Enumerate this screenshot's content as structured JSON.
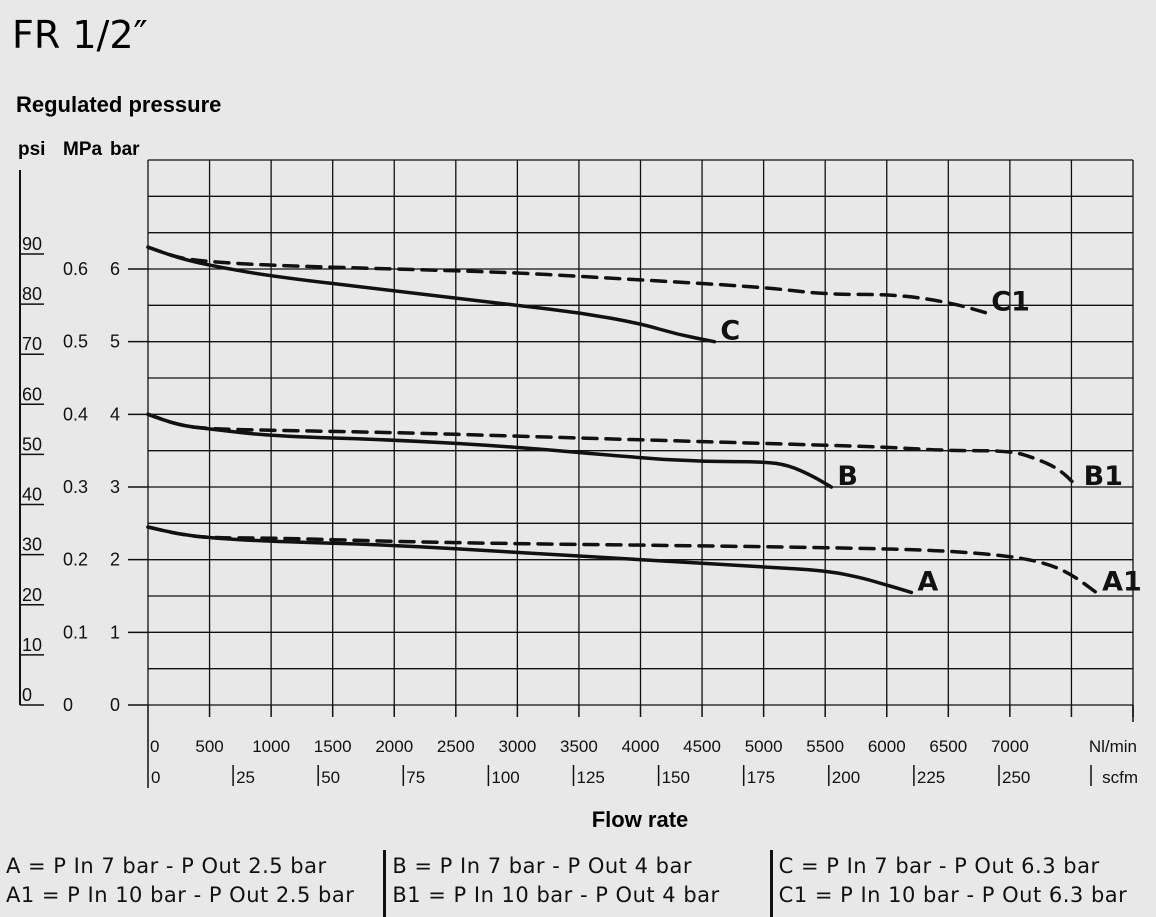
{
  "chart_data": {
    "type": "line",
    "title": "FR 1/2″",
    "ylabel": "Regulated pressure",
    "xlabel": "Flow rate",
    "y_units": [
      "psi",
      "MPa",
      "bar"
    ],
    "ylim_bar": [
      0,
      7.5
    ],
    "xlim_nlmin": [
      0,
      8000
    ],
    "grid": true,
    "y_ticks": {
      "psi": [
        "0",
        "10",
        "20",
        "30",
        "40",
        "50",
        "60",
        "70",
        "80",
        "90"
      ],
      "mpa": [
        "0",
        "0.1",
        "0.2",
        "0.3",
        "0.4",
        "0.5",
        "0.6"
      ],
      "bar": [
        "0",
        "1",
        "2",
        "3",
        "4",
        "5",
        "6"
      ]
    },
    "x_ticks_nlmin": [
      "0",
      "500",
      "1000",
      "1500",
      "2000",
      "2500",
      "3000",
      "3500",
      "4000",
      "4500",
      "5000",
      "5500",
      "6000",
      "6500",
      "7000"
    ],
    "x_unit_nlmin": "Nl/min",
    "x_ticks_scfm": [
      "0",
      "25",
      "50",
      "75",
      "100",
      "125",
      "150",
      "175",
      "200",
      "225",
      "250"
    ],
    "x_unit_scfm": "scfm",
    "series": [
      {
        "name": "A",
        "style": "solid",
        "x": [
          0,
          250,
          500,
          1000,
          2000,
          3000,
          4000,
          5000,
          5500,
          5800,
          6000,
          6200
        ],
        "y": [
          2.45,
          2.35,
          2.3,
          2.25,
          2.2,
          2.1,
          2.0,
          1.9,
          1.85,
          1.75,
          1.65,
          1.55
        ]
      },
      {
        "name": "A1",
        "style": "dashed",
        "x": [
          0,
          250,
          500,
          1000,
          2000,
          3000,
          4000,
          5000,
          6000,
          6500,
          7000,
          7300,
          7500,
          7700
        ],
        "y": [
          2.45,
          2.35,
          2.3,
          2.3,
          2.25,
          2.22,
          2.2,
          2.18,
          2.15,
          2.12,
          2.05,
          1.95,
          1.8,
          1.55
        ]
      },
      {
        "name": "B",
        "style": "solid",
        "x": [
          0,
          250,
          500,
          1000,
          2000,
          3000,
          4000,
          4500,
          5000,
          5200,
          5400,
          5550
        ],
        "y": [
          4.0,
          3.85,
          3.8,
          3.7,
          3.65,
          3.55,
          3.4,
          3.35,
          3.35,
          3.3,
          3.15,
          3.0
        ]
      },
      {
        "name": "B1",
        "style": "dashed",
        "x": [
          0,
          250,
          500,
          1000,
          2000,
          3000,
          4000,
          5000,
          6000,
          6500,
          7000,
          7200,
          7400,
          7550
        ],
        "y": [
          4.0,
          3.85,
          3.8,
          3.78,
          3.75,
          3.7,
          3.65,
          3.6,
          3.55,
          3.5,
          3.5,
          3.4,
          3.25,
          3.0
        ]
      },
      {
        "name": "C",
        "style": "solid",
        "x": [
          0,
          250,
          500,
          1000,
          2000,
          3000,
          3500,
          4000,
          4300,
          4600
        ],
        "y": [
          6.3,
          6.15,
          6.05,
          5.9,
          5.7,
          5.5,
          5.4,
          5.25,
          5.1,
          5.0
        ]
      },
      {
        "name": "C1",
        "style": "dashed",
        "x": [
          0,
          250,
          500,
          1000,
          2000,
          3000,
          4000,
          5000,
          5500,
          6000,
          6300,
          6600,
          6800
        ],
        "y": [
          6.3,
          6.15,
          6.1,
          6.05,
          6.0,
          5.95,
          5.85,
          5.75,
          5.65,
          5.65,
          5.6,
          5.5,
          5.4
        ]
      }
    ],
    "legend": {
      "col1": [
        "A  =  P In  7  bar  -  P Out   2.5  bar",
        "A1 =  P In 10  bar  -  P Out   2.5  bar"
      ],
      "col2": [
        "B  =  P In  7  bar  -  P Out        4  bar",
        "B1 =  P In 10  bar  -  P Out        4  bar"
      ],
      "col3": [
        "C  =  P In  7  bar  -  P Out   6.3  bar",
        "C1 =  P In 10  bar  -  P Out   6.3  bar"
      ]
    }
  }
}
